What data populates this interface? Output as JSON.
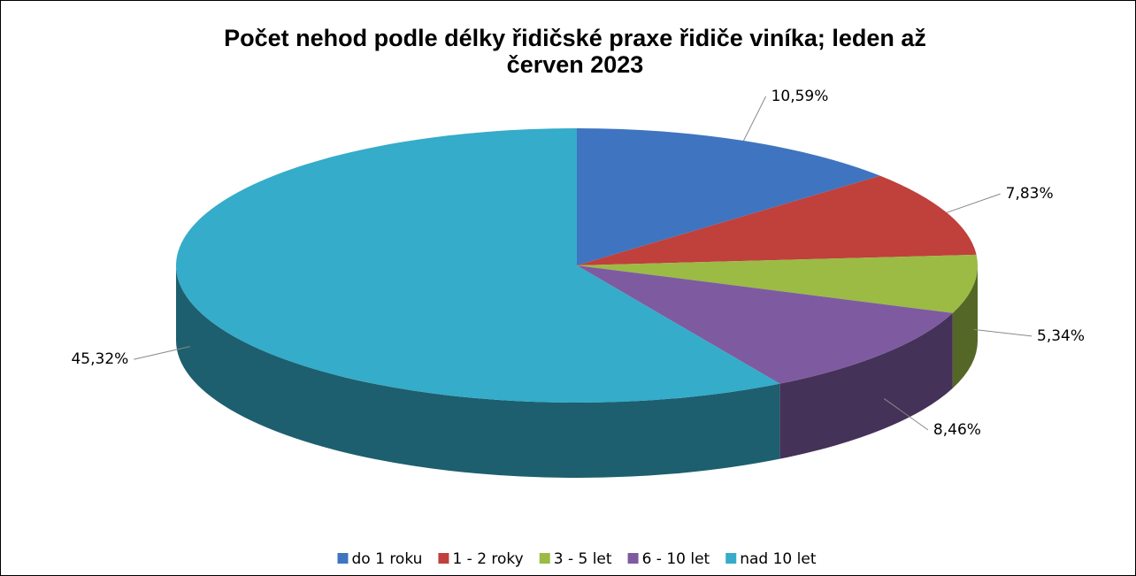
{
  "chart_data": {
    "type": "pie3d",
    "title": "Počet nehod podle délky řidičské praxe řidiče viníka; leden až červen 2023",
    "categories": [
      "do 1 roku",
      "1 - 2 roky",
      "3 - 5 let",
      "6 - 10 let",
      "nad 10 let"
    ],
    "values": [
      10.59,
      7.83,
      5.34,
      8.46,
      45.32
    ],
    "value_labels": [
      "10,59%",
      "7,83%",
      "5,34%",
      "8,46%",
      "45,32%"
    ],
    "colors": [
      "#3f74c0",
      "#c0403c",
      "#9bbb45",
      "#7e5ba0",
      "#35acc9"
    ],
    "legend": "bottom"
  }
}
